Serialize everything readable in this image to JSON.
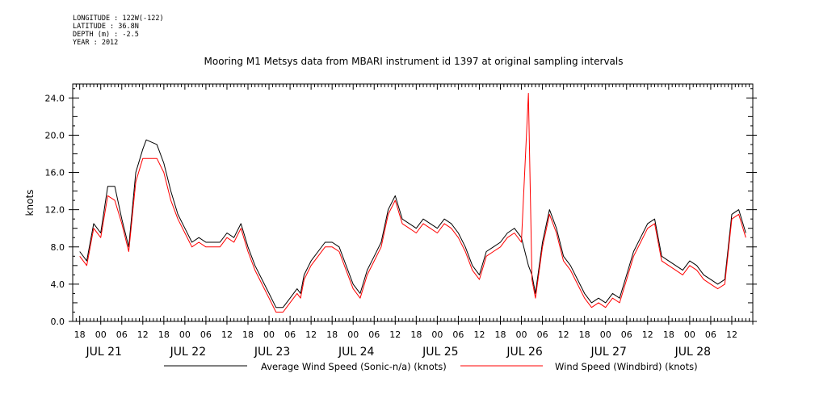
{
  "metadata": {
    "longitude": "LONGITUDE : 122W(-122)",
    "latitude": "LATITUDE : 36.8N",
    "depth": "DEPTH (m) : -2.5",
    "year": "YEAR : 2012"
  },
  "chart_data": {
    "type": "line",
    "title": "Mooring M1 Metsys data from MBARI instrument id 1397 at original sampling intervals",
    "ylabel": "knots",
    "xlabel": "",
    "ylim": [
      0,
      25.5
    ],
    "xlim": [
      -8,
      186
    ],
    "x_units": "hours since JUL 21 00:00 (2012)",
    "yticks": [
      "0.0",
      "4.0",
      "8.0",
      "12.0",
      "16.0",
      "20.0",
      "24.0"
    ],
    "xticks_hours": [
      "18",
      "00",
      "06",
      "12",
      "18",
      "00",
      "06",
      "12",
      "18",
      "00",
      "06",
      "12",
      "18",
      "00",
      "06",
      "12",
      "18",
      "00",
      "06",
      "12",
      "18",
      "00",
      "06",
      "12",
      "18",
      "00",
      "06",
      "12",
      "18",
      "00",
      "06",
      "12"
    ],
    "day_labels": [
      "JUL 21",
      "JUL 22",
      "JUL 23",
      "JUL 24",
      "JUL 25",
      "JUL 26",
      "JUL 27",
      "JUL 28"
    ],
    "grid": false,
    "legend_position": "bottom",
    "series": [
      {
        "name": "Average Wind Speed (Sonic-n/a) (knots)",
        "color": "#000000",
        "x": [
          -6,
          -4,
          -2,
          0,
          2,
          4,
          6,
          8,
          10,
          12,
          13,
          16,
          18,
          20,
          22,
          24,
          26,
          28,
          30,
          32,
          34,
          36,
          38,
          40,
          42,
          44,
          46,
          48,
          50,
          52,
          54,
          56,
          57,
          58,
          60,
          62,
          64,
          66,
          68,
          70,
          72,
          74,
          76,
          78,
          80,
          82,
          84,
          86,
          88,
          90,
          92,
          94,
          96,
          98,
          100,
          102,
          104,
          106,
          108,
          110,
          112,
          114,
          116,
          118,
          120,
          122,
          123,
          124,
          126,
          128,
          130,
          132,
          134,
          136,
          138,
          140,
          142,
          144,
          146,
          148,
          150,
          152,
          154,
          156,
          158,
          160,
          162,
          164,
          166,
          168,
          170,
          172,
          174,
          176,
          178,
          180,
          182,
          184
        ],
        "y": [
          7.5,
          6.5,
          10.5,
          9.5,
          14.5,
          14.5,
          11.0,
          8.0,
          16.0,
          18.5,
          19.5,
          19.0,
          17.0,
          14.0,
          11.5,
          10.0,
          8.5,
          9.0,
          8.5,
          8.5,
          8.5,
          9.5,
          9.0,
          10.5,
          8.0,
          6.0,
          4.5,
          3.0,
          1.5,
          1.5,
          2.5,
          3.5,
          3.0,
          5.0,
          6.5,
          7.5,
          8.5,
          8.5,
          8.0,
          6.0,
          4.0,
          3.0,
          5.5,
          7.0,
          8.5,
          12.0,
          13.5,
          11.0,
          10.5,
          10.0,
          11.0,
          10.5,
          10.0,
          11.0,
          10.5,
          9.5,
          8.0,
          6.0,
          5.0,
          7.5,
          8.0,
          8.5,
          9.5,
          10.0,
          9.0,
          6.0,
          5.0,
          3.0,
          8.5,
          12.0,
          10.0,
          7.0,
          6.0,
          4.5,
          3.0,
          2.0,
          2.5,
          2.0,
          3.0,
          2.5,
          5.0,
          7.5,
          9.0,
          10.5,
          11.0,
          7.0,
          6.5,
          6.0,
          5.5,
          6.5,
          6.0,
          5.0,
          4.5,
          4.0,
          4.5,
          11.5,
          12.0,
          9.5
        ]
      },
      {
        "name": "Wind Speed (Windbird) (knots)",
        "color": "#ff0000",
        "x": [
          -6,
          -4,
          -2,
          0,
          2,
          4,
          6,
          8,
          10,
          12,
          13,
          16,
          18,
          20,
          22,
          24,
          26,
          28,
          30,
          32,
          34,
          36,
          38,
          40,
          42,
          44,
          46,
          48,
          50,
          52,
          54,
          56,
          57,
          58,
          60,
          62,
          64,
          66,
          68,
          70,
          72,
          74,
          76,
          78,
          80,
          82,
          84,
          86,
          88,
          90,
          92,
          94,
          96,
          98,
          100,
          102,
          104,
          106,
          108,
          110,
          112,
          114,
          116,
          118,
          120,
          122,
          123,
          124,
          126,
          128,
          130,
          132,
          134,
          136,
          138,
          140,
          142,
          144,
          146,
          148,
          150,
          152,
          154,
          156,
          158,
          160,
          162,
          164,
          166,
          168,
          170,
          172,
          174,
          176,
          178,
          180,
          182,
          184
        ],
        "y": [
          7.0,
          6.0,
          10.0,
          9.0,
          13.5,
          13.0,
          10.5,
          7.5,
          15.0,
          17.5,
          17.5,
          17.5,
          16.0,
          13.0,
          11.0,
          9.5,
          8.0,
          8.5,
          8.0,
          8.0,
          8.0,
          9.0,
          8.5,
          10.0,
          7.5,
          5.5,
          4.0,
          2.5,
          1.0,
          1.0,
          2.0,
          3.0,
          2.5,
          4.5,
          6.0,
          7.0,
          8.0,
          8.0,
          7.5,
          5.5,
          3.5,
          2.5,
          5.0,
          6.5,
          8.0,
          11.5,
          13.0,
          10.5,
          10.0,
          9.5,
          10.5,
          10.0,
          9.5,
          10.5,
          10.0,
          9.0,
          7.5,
          5.5,
          4.5,
          7.0,
          7.5,
          8.0,
          9.0,
          9.5,
          8.5,
          24.5,
          4.5,
          2.5,
          8.0,
          11.5,
          9.5,
          6.5,
          5.5,
          4.0,
          2.5,
          1.5,
          2.0,
          1.5,
          2.5,
          2.0,
          4.5,
          7.0,
          8.5,
          10.0,
          10.5,
          6.5,
          6.0,
          5.5,
          5.0,
          6.0,
          5.5,
          4.5,
          4.0,
          3.5,
          4.0,
          11.0,
          11.5,
          9.0
        ]
      }
    ],
    "legend": [
      {
        "label": "Average Wind Speed (Sonic-n/a) (knots)",
        "color": "#000000"
      },
      {
        "label": "Wind Speed (Windbird) (knots)",
        "color": "#ff0000"
      }
    ]
  }
}
